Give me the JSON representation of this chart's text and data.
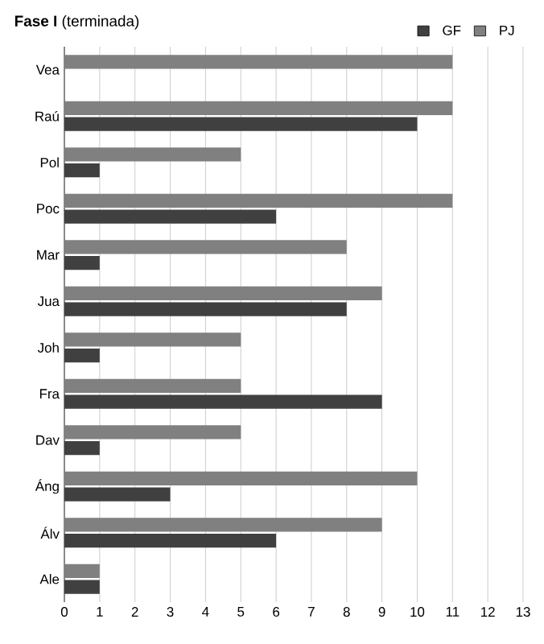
{
  "chart_data": {
    "type": "bar",
    "orientation": "horizontal",
    "title": "**Fase I** (terminada)",
    "categories": [
      "Vea",
      "Raú",
      "Pol",
      "Poc",
      "Mar",
      "Jua",
      "Joh",
      "Fra",
      "Dav",
      "Áng",
      "Álv",
      "Ale"
    ],
    "series": [
      {
        "name": "GF",
        "color": "#404040",
        "values": [
          null,
          10,
          1,
          6,
          1,
          8,
          1,
          9,
          1,
          3,
          6,
          1
        ]
      },
      {
        "name": "PJ",
        "color": "#808080",
        "values": [
          11,
          11,
          5,
          11,
          8,
          9,
          5,
          5,
          5,
          10,
          9,
          1
        ]
      }
    ],
    "xlim": [
      0,
      13
    ],
    "xticks": [
      0,
      1,
      2,
      3,
      4,
      5,
      6,
      7,
      8,
      9,
      10,
      11,
      12,
      13
    ],
    "grid": "x",
    "legend": "top right"
  }
}
